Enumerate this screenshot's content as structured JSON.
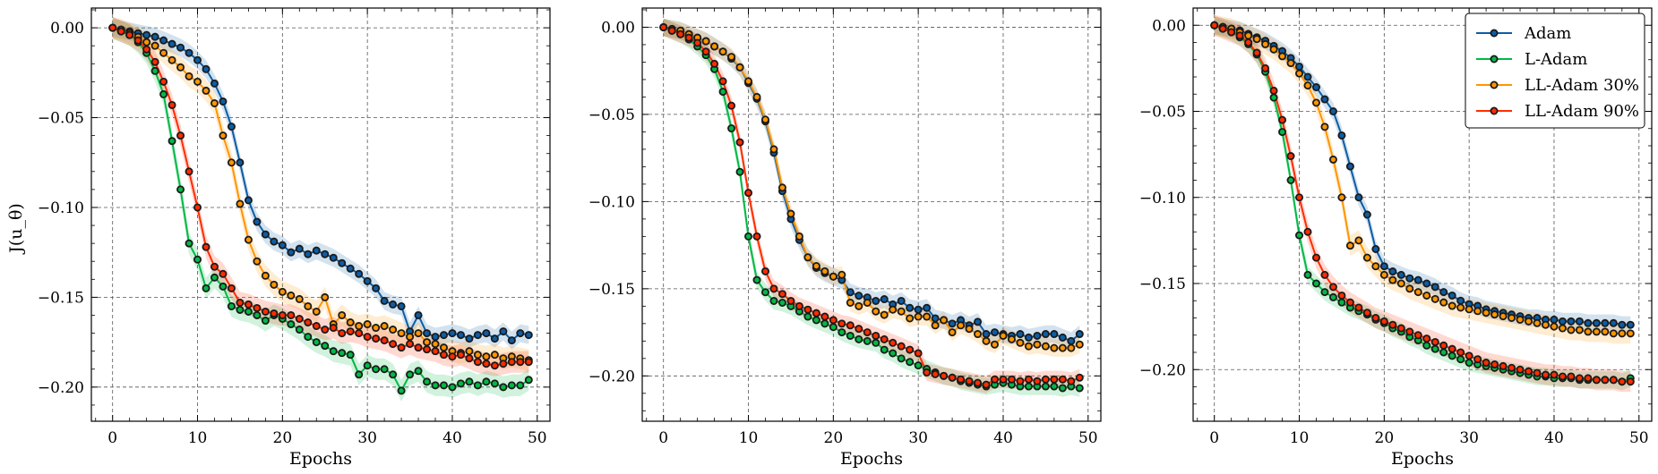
{
  "colors": {
    "Adam": "#0C5DA5",
    "L-Adam": "#00B945",
    "LL-Adam 30%": "#FF9500",
    "LL-Adam 90%": "#FF2C00",
    "marker_edge": "#1a1a1a",
    "grid": "#555555"
  },
  "ylabel": "J(u_θ)",
  "chart_data": [
    {
      "type": "line",
      "xlabel": "Epochs",
      "ylabel": "J(u_θ)",
      "xlim": [
        -2.5,
        51.5
      ],
      "ylim": [
        -0.219,
        0.011
      ],
      "xticks": [
        0,
        10,
        20,
        30,
        40,
        50
      ],
      "xtick_labels": [
        "0",
        "10",
        "20",
        "30",
        "40",
        "50"
      ],
      "yticks": [
        0.0,
        -0.05,
        -0.1,
        -0.15,
        -0.2
      ],
      "ytick_labels": [
        "0.00",
        "−0.05",
        "−0.10",
        "−0.15",
        "−0.20"
      ],
      "grid": true,
      "legend": false,
      "series": [
        {
          "name": "Adam",
          "color": "#0C5DA5",
          "band": 0.005,
          "values": [
            0,
            -0.001,
            -0.002,
            -0.003,
            -0.004,
            -0.005,
            -0.007,
            -0.009,
            -0.011,
            -0.014,
            -0.018,
            -0.023,
            -0.031,
            -0.041,
            -0.055,
            -0.075,
            -0.096,
            -0.108,
            -0.115,
            -0.119,
            -0.121,
            -0.125,
            -0.123,
            -0.126,
            -0.124,
            -0.126,
            -0.128,
            -0.131,
            -0.134,
            -0.137,
            -0.141,
            -0.145,
            -0.152,
            -0.154,
            -0.155,
            -0.169,
            -0.16,
            -0.17,
            -0.172,
            -0.171,
            -0.17,
            -0.171,
            -0.173,
            -0.171,
            -0.17,
            -0.173,
            -0.169,
            -0.174,
            -0.17,
            -0.171
          ]
        },
        {
          "name": "L-Adam",
          "color": "#00B945",
          "band": 0.006,
          "values": [
            0,
            -0.002,
            -0.004,
            -0.008,
            -0.014,
            -0.024,
            -0.037,
            -0.063,
            -0.09,
            -0.12,
            -0.129,
            -0.145,
            -0.139,
            -0.144,
            -0.155,
            -0.157,
            -0.158,
            -0.16,
            -0.163,
            -0.16,
            -0.162,
            -0.165,
            -0.168,
            -0.172,
            -0.175,
            -0.177,
            -0.18,
            -0.181,
            -0.182,
            -0.193,
            -0.188,
            -0.19,
            -0.19,
            -0.193,
            -0.202,
            -0.193,
            -0.191,
            -0.197,
            -0.199,
            -0.199,
            -0.2,
            -0.198,
            -0.197,
            -0.199,
            -0.197,
            -0.198,
            -0.2,
            -0.199,
            -0.199,
            -0.196
          ]
        },
        {
          "name": "LL-Adam 30%",
          "color": "#FF9500",
          "band": 0.006,
          "values": [
            0,
            -0.001,
            -0.003,
            -0.005,
            -0.008,
            -0.01,
            -0.014,
            -0.018,
            -0.022,
            -0.027,
            -0.03,
            -0.035,
            -0.042,
            -0.06,
            -0.075,
            -0.098,
            -0.118,
            -0.13,
            -0.138,
            -0.143,
            -0.147,
            -0.149,
            -0.151,
            -0.155,
            -0.158,
            -0.15,
            -0.165,
            -0.16,
            -0.164,
            -0.166,
            -0.165,
            -0.167,
            -0.166,
            -0.168,
            -0.17,
            -0.172,
            -0.17,
            -0.175,
            -0.176,
            -0.178,
            -0.18,
            -0.181,
            -0.18,
            -0.182,
            -0.183,
            -0.182,
            -0.184,
            -0.183,
            -0.184,
            -0.185
          ]
        },
        {
          "name": "LL-Adam 90%",
          "color": "#FF2C00",
          "band": 0.006,
          "values": [
            0,
            -0.002,
            -0.004,
            -0.007,
            -0.012,
            -0.019,
            -0.03,
            -0.043,
            -0.06,
            -0.08,
            -0.1,
            -0.122,
            -0.133,
            -0.137,
            -0.145,
            -0.153,
            -0.154,
            -0.156,
            -0.158,
            -0.159,
            -0.16,
            -0.16,
            -0.162,
            -0.164,
            -0.166,
            -0.168,
            -0.167,
            -0.17,
            -0.169,
            -0.17,
            -0.172,
            -0.173,
            -0.174,
            -0.176,
            -0.178,
            -0.176,
            -0.178,
            -0.179,
            -0.18,
            -0.182,
            -0.183,
            -0.182,
            -0.184,
            -0.186,
            -0.187,
            -0.188,
            -0.187,
            -0.186,
            -0.186,
            -0.186
          ]
        }
      ]
    },
    {
      "type": "line",
      "xlabel": "Epochs",
      "xlim": [
        -2.5,
        51.5
      ],
      "ylim": [
        -0.226,
        0.011
      ],
      "xticks": [
        0,
        10,
        20,
        30,
        40,
        50
      ],
      "xtick_labels": [
        "0",
        "10",
        "20",
        "30",
        "40",
        "50"
      ],
      "yticks": [
        0.0,
        -0.05,
        -0.1,
        -0.15,
        -0.2
      ],
      "ytick_labels": [
        "0.00",
        "−0.05",
        "−0.10",
        "−0.15",
        "−0.20"
      ],
      "grid": true,
      "legend": false,
      "series": [
        {
          "name": "Adam",
          "color": "#0C5DA5",
          "band": 0.005,
          "values": [
            0,
            -0.001,
            -0.002,
            -0.004,
            -0.006,
            -0.008,
            -0.011,
            -0.014,
            -0.018,
            -0.023,
            -0.032,
            -0.041,
            -0.054,
            -0.072,
            -0.094,
            -0.11,
            -0.122,
            -0.132,
            -0.138,
            -0.141,
            -0.143,
            -0.145,
            -0.152,
            -0.154,
            -0.155,
            -0.157,
            -0.156,
            -0.159,
            -0.157,
            -0.161,
            -0.162,
            -0.161,
            -0.167,
            -0.168,
            -0.17,
            -0.168,
            -0.171,
            -0.169,
            -0.176,
            -0.175,
            -0.176,
            -0.177,
            -0.176,
            -0.178,
            -0.177,
            -0.176,
            -0.176,
            -0.178,
            -0.18,
            -0.176
          ]
        },
        {
          "name": "L-Adam",
          "color": "#00B945",
          "band": 0.005,
          "values": [
            0,
            -0.002,
            -0.004,
            -0.007,
            -0.011,
            -0.016,
            -0.024,
            -0.037,
            -0.058,
            -0.083,
            -0.12,
            -0.145,
            -0.152,
            -0.157,
            -0.158,
            -0.16,
            -0.163,
            -0.166,
            -0.168,
            -0.17,
            -0.172,
            -0.175,
            -0.177,
            -0.179,
            -0.18,
            -0.181,
            -0.185,
            -0.187,
            -0.19,
            -0.192,
            -0.194,
            -0.196,
            -0.198,
            -0.2,
            -0.201,
            -0.203,
            -0.204,
            -0.205,
            -0.206,
            -0.205,
            -0.204,
            -0.205,
            -0.206,
            -0.206,
            -0.206,
            -0.206,
            -0.206,
            -0.207,
            -0.206,
            -0.207
          ]
        },
        {
          "name": "LL-Adam 30%",
          "color": "#FF9500",
          "band": 0.005,
          "values": [
            0,
            -0.001,
            -0.002,
            -0.004,
            -0.006,
            -0.008,
            -0.011,
            -0.014,
            -0.017,
            -0.023,
            -0.031,
            -0.04,
            -0.053,
            -0.07,
            -0.092,
            -0.107,
            -0.12,
            -0.132,
            -0.137,
            -0.14,
            -0.143,
            -0.142,
            -0.158,
            -0.16,
            -0.158,
            -0.163,
            -0.165,
            -0.162,
            -0.163,
            -0.167,
            -0.166,
            -0.166,
            -0.171,
            -0.168,
            -0.175,
            -0.171,
            -0.173,
            -0.176,
            -0.18,
            -0.182,
            -0.177,
            -0.179,
            -0.181,
            -0.183,
            -0.182,
            -0.183,
            -0.184,
            -0.184,
            -0.184,
            -0.182
          ]
        },
        {
          "name": "LL-Adam 90%",
          "color": "#FF2C00",
          "band": 0.005,
          "values": [
            0,
            -0.002,
            -0.004,
            -0.006,
            -0.009,
            -0.014,
            -0.021,
            -0.031,
            -0.045,
            -0.066,
            -0.095,
            -0.12,
            -0.14,
            -0.15,
            -0.153,
            -0.157,
            -0.16,
            -0.162,
            -0.164,
            -0.166,
            -0.168,
            -0.17,
            -0.171,
            -0.173,
            -0.175,
            -0.177,
            -0.179,
            -0.181,
            -0.183,
            -0.185,
            -0.187,
            -0.198,
            -0.199,
            -0.2,
            -0.201,
            -0.202,
            -0.203,
            -0.204,
            -0.205,
            -0.202,
            -0.202,
            -0.202,
            -0.203,
            -0.202,
            -0.203,
            -0.202,
            -0.202,
            -0.202,
            -0.203,
            -0.201
          ]
        }
      ]
    },
    {
      "type": "line",
      "xlabel": "Epochs",
      "xlim": [
        -2.5,
        51.5
      ],
      "ylim": [
        -0.23,
        0.01
      ],
      "xticks": [
        0,
        10,
        20,
        30,
        40,
        50
      ],
      "xtick_labels": [
        "0",
        "10",
        "20",
        "30",
        "40",
        "50"
      ],
      "yticks": [
        0.0,
        -0.05,
        -0.1,
        -0.15,
        -0.2
      ],
      "ytick_labels": [
        "0.00",
        "−0.05",
        "−0.10",
        "−0.15",
        "−0.20"
      ],
      "grid": true,
      "legend": true,
      "legend_position": "top-right",
      "series": [
        {
          "name": "Adam",
          "color": "#0C5DA5",
          "band": 0.005,
          "values": [
            0,
            -0.001,
            -0.002,
            -0.003,
            -0.005,
            -0.007,
            -0.009,
            -0.012,
            -0.015,
            -0.019,
            -0.024,
            -0.03,
            -0.036,
            -0.043,
            -0.05,
            -0.064,
            -0.082,
            -0.1,
            -0.11,
            -0.13,
            -0.14,
            -0.143,
            -0.145,
            -0.147,
            -0.148,
            -0.15,
            -0.152,
            -0.155,
            -0.157,
            -0.16,
            -0.162,
            -0.163,
            -0.165,
            -0.166,
            -0.167,
            -0.168,
            -0.169,
            -0.17,
            -0.17,
            -0.171,
            -0.171,
            -0.172,
            -0.172,
            -0.172,
            -0.173,
            -0.173,
            -0.173,
            -0.173,
            -0.174,
            -0.174
          ]
        },
        {
          "name": "L-Adam",
          "color": "#00B945",
          "band": 0.005,
          "values": [
            0,
            -0.002,
            -0.004,
            -0.007,
            -0.011,
            -0.017,
            -0.027,
            -0.042,
            -0.062,
            -0.09,
            -0.122,
            -0.145,
            -0.15,
            -0.155,
            -0.158,
            -0.161,
            -0.164,
            -0.166,
            -0.168,
            -0.171,
            -0.173,
            -0.176,
            -0.178,
            -0.181,
            -0.183,
            -0.186,
            -0.188,
            -0.19,
            -0.192,
            -0.194,
            -0.196,
            -0.197,
            -0.198,
            -0.199,
            -0.2,
            -0.201,
            -0.202,
            -0.203,
            -0.204,
            -0.204,
            -0.205,
            -0.205,
            -0.205,
            -0.206,
            -0.206,
            -0.206,
            -0.206,
            -0.206,
            -0.207,
            -0.205
          ]
        },
        {
          "name": "LL-Adam 30%",
          "color": "#FF9500",
          "band": 0.006,
          "values": [
            0,
            -0.001,
            -0.002,
            -0.004,
            -0.006,
            -0.008,
            -0.011,
            -0.014,
            -0.018,
            -0.022,
            -0.028,
            -0.035,
            -0.045,
            -0.059,
            -0.078,
            -0.1,
            -0.128,
            -0.125,
            -0.135,
            -0.14,
            -0.145,
            -0.148,
            -0.15,
            -0.153,
            -0.155,
            -0.157,
            -0.159,
            -0.161,
            -0.163,
            -0.164,
            -0.165,
            -0.166,
            -0.167,
            -0.168,
            -0.169,
            -0.17,
            -0.171,
            -0.172,
            -0.173,
            -0.174,
            -0.175,
            -0.176,
            -0.177,
            -0.177,
            -0.178,
            -0.178,
            -0.178,
            -0.179,
            -0.179,
            -0.179
          ]
        },
        {
          "name": "LL-Adam 90%",
          "color": "#FF2C00",
          "band": 0.006,
          "values": [
            0,
            -0.002,
            -0.004,
            -0.006,
            -0.01,
            -0.016,
            -0.025,
            -0.038,
            -0.055,
            -0.076,
            -0.1,
            -0.12,
            -0.135,
            -0.145,
            -0.152,
            -0.157,
            -0.161,
            -0.164,
            -0.167,
            -0.17,
            -0.172,
            -0.174,
            -0.176,
            -0.178,
            -0.18,
            -0.182,
            -0.184,
            -0.186,
            -0.188,
            -0.19,
            -0.192,
            -0.194,
            -0.196,
            -0.197,
            -0.198,
            -0.199,
            -0.2,
            -0.201,
            -0.202,
            -0.203,
            -0.203,
            -0.204,
            -0.204,
            -0.205,
            -0.205,
            -0.206,
            -0.206,
            -0.206,
            -0.207,
            -0.207
          ]
        }
      ]
    }
  ]
}
